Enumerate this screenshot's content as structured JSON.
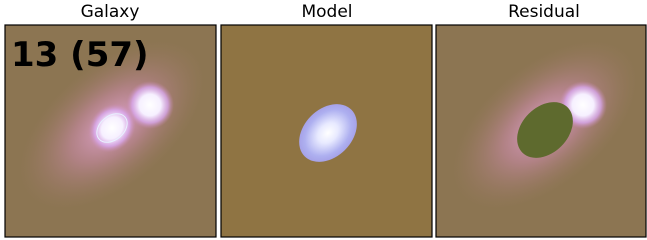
{
  "panels": [
    {
      "title": "Galaxy"
    },
    {
      "title": "Model"
    },
    {
      "title": "Residual"
    }
  ],
  "label": "13 (57)"
}
